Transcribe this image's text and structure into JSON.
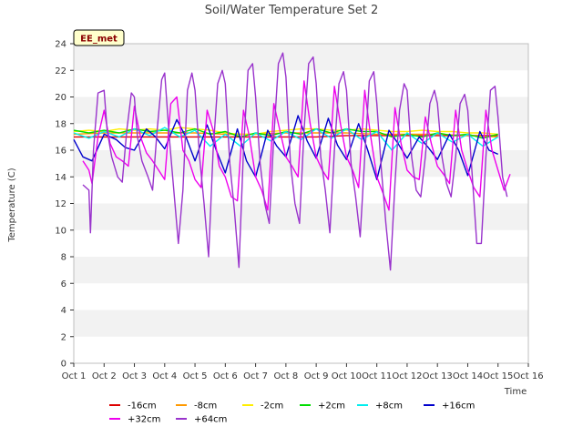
{
  "chart_data": {
    "type": "line",
    "title": "Soil/Water Temperature Set 2",
    "xlabel": "Time",
    "ylabel": "Temperature (C)",
    "badge": "EE_met",
    "ylim": [
      0,
      24
    ],
    "xlim": [
      1,
      16
    ],
    "x_ticks": [
      "Oct 1",
      "Oct 2",
      "Oct 3",
      "Oct 4",
      "Oct 5",
      "Oct 6",
      "Oct 7",
      "Oct 8",
      "Oct 9",
      "Oct 10",
      "Oct 11",
      "Oct 12",
      "Oct 13",
      "Oct 14",
      "Oct 15",
      "Oct 16"
    ],
    "y_ticks": [
      0,
      2,
      4,
      6,
      8,
      10,
      12,
      14,
      16,
      18,
      20,
      22,
      24
    ],
    "grid": "horizontal bands",
    "legend": "bottom",
    "x_unit": "day of October",
    "series": [
      {
        "name": "-16cm",
        "color": "#dd0000",
        "x": [
          1.0,
          2.0,
          3.0,
          4.0,
          5.0,
          6.0,
          7.0,
          8.0,
          9.0,
          10.0,
          11.0,
          12.0,
          13.0,
          14.0,
          15.0
        ],
        "y": [
          17.0,
          17.0,
          17.0,
          17.0,
          17.0,
          17.0,
          17.0,
          17.0,
          17.0,
          17.1,
          17.1,
          17.1,
          17.1,
          17.1,
          17.1
        ]
      },
      {
        "name": "-8cm",
        "color": "#ff9900",
        "x": [
          1.0,
          2.0,
          3.0,
          4.0,
          5.0,
          6.0,
          7.0,
          8.0,
          9.0,
          10.0,
          11.0,
          12.0,
          13.0,
          14.0,
          15.0
        ],
        "y": [
          17.2,
          17.3,
          17.3,
          17.3,
          17.3,
          17.2,
          17.2,
          17.3,
          17.3,
          17.3,
          17.2,
          17.2,
          17.2,
          17.1,
          17.0
        ]
      },
      {
        "name": "-2cm",
        "color": "#ffee00",
        "x": [
          1.0,
          1.5,
          2.0,
          2.5,
          3.0,
          3.5,
          4.0,
          4.5,
          5.0,
          5.5,
          6.0,
          6.5,
          7.0,
          7.5,
          8.0,
          8.5,
          9.0,
          9.5,
          10.0,
          10.5,
          11.0,
          11.5,
          12.0,
          12.5,
          13.0,
          13.5,
          14.0,
          14.5,
          15.0
        ],
        "y": [
          17.4,
          17.5,
          17.4,
          17.6,
          17.5,
          17.6,
          17.5,
          17.7,
          17.6,
          17.5,
          17.3,
          17.2,
          17.2,
          17.4,
          17.5,
          17.6,
          17.6,
          17.5,
          17.5,
          17.6,
          17.5,
          17.4,
          17.4,
          17.5,
          17.4,
          17.4,
          17.3,
          17.3,
          17.2
        ]
      },
      {
        "name": "+2cm",
        "color": "#00dd00",
        "x": [
          1.0,
          1.5,
          2.0,
          2.5,
          3.0,
          3.5,
          4.0,
          4.5,
          5.0,
          5.5,
          6.0,
          6.5,
          7.0,
          7.5,
          8.0,
          8.5,
          9.0,
          9.5,
          10.0,
          10.5,
          11.0,
          11.5,
          12.0,
          12.5,
          13.0,
          13.5,
          14.0,
          14.5,
          15.0
        ],
        "y": [
          17.5,
          17.3,
          17.5,
          17.3,
          17.6,
          17.4,
          17.5,
          17.3,
          17.6,
          17.2,
          17.4,
          17.0,
          17.3,
          17.1,
          17.4,
          17.2,
          17.6,
          17.3,
          17.6,
          17.4,
          17.4,
          17.0,
          17.2,
          17.0,
          17.3,
          17.1,
          17.2,
          16.9,
          17.2
        ]
      },
      {
        "name": "+8cm",
        "color": "#00eeee",
        "x": [
          1.0,
          1.5,
          2.0,
          2.5,
          3.0,
          3.5,
          4.0,
          4.5,
          5.0,
          5.5,
          6.0,
          6.5,
          7.0,
          7.5,
          8.0,
          8.5,
          9.0,
          9.5,
          10.0,
          10.5,
          11.0,
          11.5,
          12.0,
          12.5,
          13.0,
          13.5,
          14.0,
          14.5,
          15.0
        ],
        "y": [
          17.3,
          16.9,
          17.4,
          17.0,
          17.6,
          17.1,
          17.7,
          17.0,
          17.5,
          16.3,
          17.2,
          16.3,
          17.3,
          16.7,
          17.4,
          16.8,
          17.6,
          16.9,
          17.6,
          16.8,
          17.4,
          16.0,
          17.3,
          16.5,
          17.3,
          16.6,
          17.2,
          16.3,
          17.0
        ]
      },
      {
        "name": "+16cm",
        "color": "#0000cc",
        "x": [
          1.0,
          1.3,
          1.6,
          2.0,
          2.4,
          2.7,
          3.0,
          3.4,
          3.7,
          4.0,
          4.4,
          4.7,
          5.0,
          5.4,
          5.7,
          6.0,
          6.4,
          6.7,
          7.0,
          7.4,
          7.7,
          8.0,
          8.4,
          8.7,
          9.0,
          9.4,
          9.7,
          10.0,
          10.4,
          10.7,
          11.0,
          11.4,
          11.7,
          12.0,
          12.4,
          12.7,
          13.0,
          13.4,
          13.7,
          14.0,
          14.4,
          14.7,
          15.0
        ],
        "y": [
          16.8,
          15.5,
          15.2,
          17.2,
          16.8,
          16.2,
          16.0,
          17.6,
          17.0,
          16.1,
          18.3,
          17.0,
          15.2,
          17.9,
          16.0,
          14.3,
          17.6,
          15.2,
          14.0,
          17.5,
          16.3,
          15.5,
          18.6,
          16.7,
          15.4,
          18.4,
          16.4,
          15.3,
          18.0,
          16.0,
          13.8,
          17.5,
          16.5,
          15.4,
          17.0,
          16.2,
          15.3,
          17.2,
          16.0,
          14.1,
          17.4,
          16.0,
          15.7
        ]
      },
      {
        "name": "+32cm",
        "color": "#ee00ee",
        "x": [
          1.3,
          1.5,
          1.6,
          1.8,
          2.0,
          2.2,
          2.4,
          2.6,
          2.8,
          3.0,
          3.2,
          3.4,
          3.6,
          3.8,
          4.0,
          4.2,
          4.4,
          4.6,
          4.8,
          5.0,
          5.2,
          5.4,
          5.6,
          5.8,
          6.0,
          6.2,
          6.4,
          6.6,
          6.8,
          7.0,
          7.2,
          7.4,
          7.6,
          7.8,
          8.0,
          8.2,
          8.4,
          8.6,
          8.8,
          9.0,
          9.2,
          9.4,
          9.6,
          9.8,
          10.0,
          10.2,
          10.4,
          10.6,
          10.8,
          11.0,
          11.2,
          11.4,
          11.6,
          11.8,
          12.0,
          12.2,
          12.4,
          12.6,
          12.8,
          13.0,
          13.2,
          13.4,
          13.6,
          13.8,
          14.0,
          14.2,
          14.4,
          14.6,
          14.8,
          15.0,
          15.2,
          15.4
        ],
        "y": [
          15.2,
          14.5,
          13.5,
          17.0,
          19.0,
          16.5,
          15.5,
          15.2,
          14.8,
          19.3,
          17.0,
          15.8,
          15.2,
          14.5,
          13.8,
          19.5,
          20.0,
          16.0,
          15.2,
          13.8,
          13.2,
          19.0,
          17.5,
          14.8,
          14.0,
          12.5,
          12.2,
          19.0,
          17.0,
          14.0,
          13.0,
          11.5,
          19.5,
          17.5,
          15.5,
          14.8,
          14.0,
          21.2,
          18.0,
          15.5,
          14.5,
          13.8,
          20.8,
          18.0,
          15.5,
          14.5,
          13.2,
          20.5,
          17.0,
          14.0,
          12.8,
          11.5,
          19.2,
          16.5,
          14.5,
          14.0,
          13.8,
          18.5,
          16.5,
          14.8,
          14.2,
          13.5,
          19.0,
          16.0,
          14.5,
          13.2,
          12.5,
          19.0,
          16.0,
          14.5,
          13.0,
          14.2
        ]
      },
      {
        "name": "+64cm",
        "color": "#9933cc",
        "x": [
          1.3,
          1.5,
          1.55,
          1.65,
          1.8,
          2.0,
          2.1,
          2.25,
          2.45,
          2.6,
          2.75,
          2.9,
          3.0,
          3.1,
          3.25,
          3.45,
          3.6,
          3.75,
          3.9,
          4.0,
          4.15,
          4.3,
          4.45,
          4.6,
          4.75,
          4.9,
          5.0,
          5.15,
          5.3,
          5.45,
          5.6,
          5.75,
          5.9,
          6.0,
          6.15,
          6.3,
          6.45,
          6.6,
          6.75,
          6.9,
          7.0,
          7.15,
          7.3,
          7.45,
          7.6,
          7.75,
          7.9,
          8.0,
          8.15,
          8.3,
          8.45,
          8.6,
          8.75,
          8.9,
          9.0,
          9.15,
          9.3,
          9.45,
          9.6,
          9.75,
          9.9,
          10.0,
          10.15,
          10.3,
          10.45,
          10.6,
          10.75,
          10.9,
          11.0,
          11.15,
          11.3,
          11.45,
          11.6,
          11.75,
          11.9,
          12.0,
          12.15,
          12.3,
          12.45,
          12.6,
          12.75,
          12.9,
          13.0,
          13.15,
          13.3,
          13.45,
          13.6,
          13.75,
          13.9,
          14.0,
          14.15,
          14.3,
          14.45,
          14.6,
          14.75,
          14.9,
          15.0,
          15.15,
          15.3
        ],
        "y": [
          13.4,
          13.0,
          9.8,
          16.0,
          20.3,
          20.5,
          17.5,
          15.5,
          14.0,
          13.6,
          17.5,
          20.3,
          20.0,
          17.0,
          15.2,
          14.0,
          13.0,
          17.5,
          21.3,
          21.8,
          17.0,
          13.0,
          9.0,
          13.0,
          20.5,
          21.8,
          20.5,
          15.5,
          12.0,
          8.0,
          16.0,
          21.0,
          22.0,
          21.0,
          15.0,
          11.5,
          7.2,
          16.0,
          22.0,
          22.5,
          20.0,
          15.0,
          12.0,
          10.5,
          17.0,
          22.5,
          23.3,
          21.5,
          15.0,
          12.0,
          10.5,
          17.5,
          22.5,
          23.0,
          21.0,
          15.5,
          13.0,
          9.8,
          16.0,
          21.0,
          21.9,
          20.5,
          15.0,
          12.5,
          9.5,
          15.5,
          21.2,
          21.9,
          19.5,
          14.5,
          10.5,
          7.0,
          13.5,
          19.0,
          21.0,
          20.5,
          15.5,
          13.0,
          12.5,
          15.5,
          19.5,
          20.5,
          19.5,
          15.5,
          13.5,
          12.5,
          15.5,
          19.5,
          20.2,
          19.0,
          14.0,
          9.0,
          9.0,
          15.5,
          20.5,
          20.8,
          18.5,
          14.0,
          12.5
        ]
      }
    ]
  }
}
